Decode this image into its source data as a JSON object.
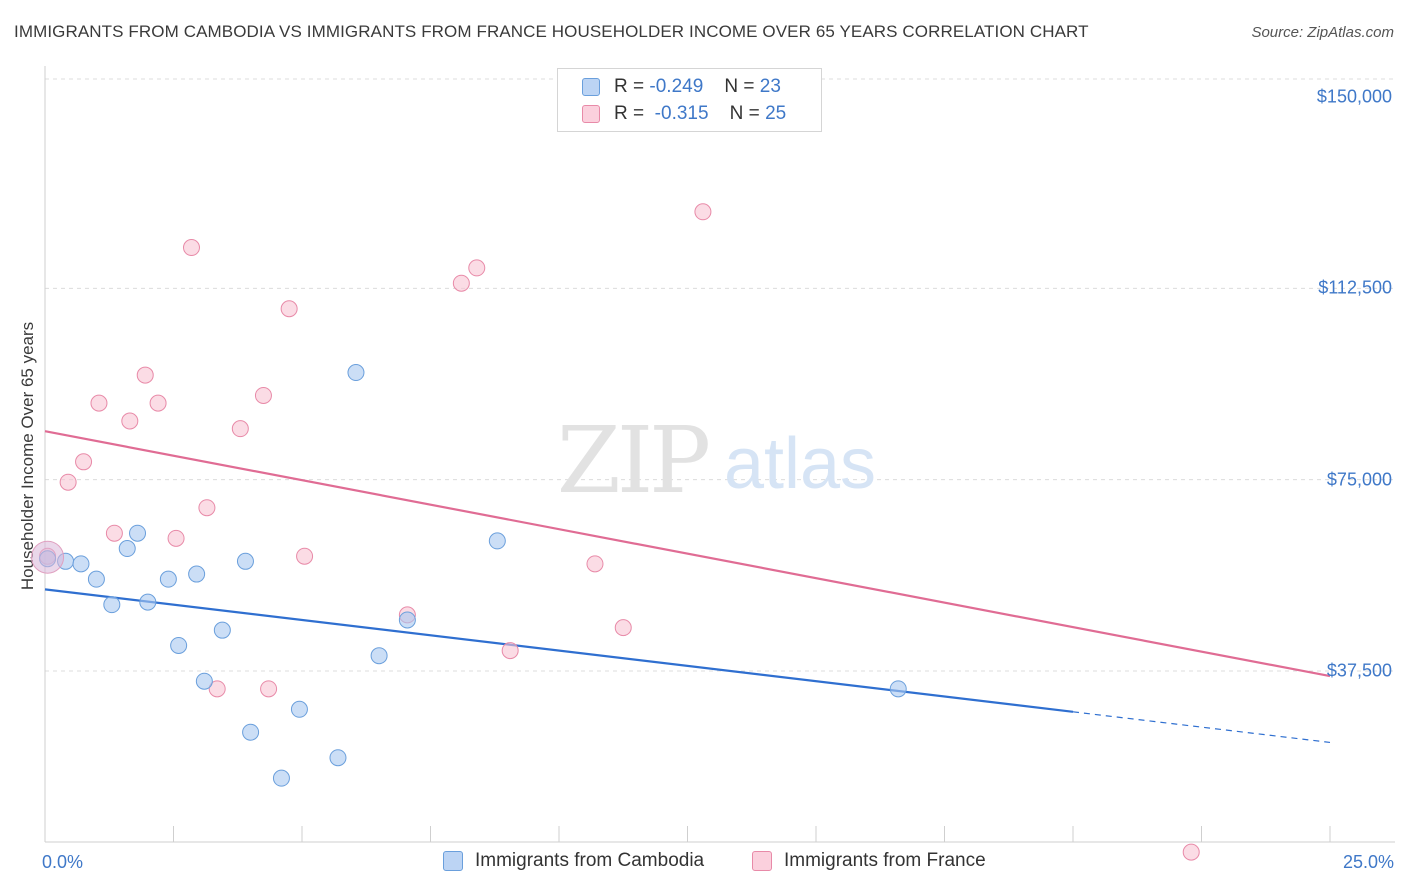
{
  "chart_data": {
    "type": "scatter",
    "title": "IMMIGRANTS FROM CAMBODIA VS IMMIGRANTS FROM FRANCE HOUSEHOLDER INCOME OVER 65 YEARS CORRELATION CHART",
    "source": "Source: ZipAtlas.com",
    "xlabel": "",
    "ylabel": "Householder Income Over 65 years",
    "xlim": [
      0,
      25
    ],
    "ylim": [
      0,
      155000
    ],
    "x_tick_labels": [
      "0.0%",
      "25.0%"
    ],
    "y_ticks": [
      {
        "value": 37500,
        "label": "$37,500"
      },
      {
        "value": 75000,
        "label": "$75,000"
      },
      {
        "value": 112500,
        "label": "$112,500"
      },
      {
        "value": 150000,
        "label": "$150,000"
      }
    ],
    "watermark": {
      "zip": "ZIP",
      "atlas": "atlas"
    },
    "legend_stats": [
      {
        "r_label": "R =",
        "r_value": "-0.249",
        "n_label": "N =",
        "n_value": "23"
      },
      {
        "r_label": "R =",
        "r_value": " -0.315",
        "n_label": "N =",
        "n_value": "25"
      }
    ],
    "series": [
      {
        "name": "Immigrants from Cambodia",
        "color": "#a9c8f0",
        "stroke": "#6a9fdc",
        "line_color": "#2f6fd0",
        "trend": {
          "x0": 0,
          "y0": 53500,
          "x1": 20,
          "y1": 29500,
          "dash_to_x": 25,
          "dash_to_y": 23500
        },
        "points": [
          [
            0.05,
            59500
          ],
          [
            0.4,
            59000
          ],
          [
            0.7,
            58500
          ],
          [
            1.0,
            55500
          ],
          [
            1.3,
            50500
          ],
          [
            1.6,
            61500
          ],
          [
            1.8,
            64500
          ],
          [
            2.0,
            51000
          ],
          [
            2.4,
            55500
          ],
          [
            2.6,
            42500
          ],
          [
            2.95,
            56500
          ],
          [
            3.1,
            35500
          ],
          [
            3.45,
            45500
          ],
          [
            3.9,
            59000
          ],
          [
            4.0,
            25500
          ],
          [
            4.6,
            16500
          ],
          [
            4.95,
            30000
          ],
          [
            5.7,
            20500
          ],
          [
            6.05,
            96000
          ],
          [
            6.5,
            40500
          ],
          [
            7.05,
            47500
          ],
          [
            8.8,
            63000
          ],
          [
            16.6,
            34000
          ]
        ]
      },
      {
        "name": "Immigrants from France",
        "color": "#f8c4d4",
        "stroke": "#e88aa8",
        "line_color": "#e06c94",
        "trend": {
          "x0": 0,
          "y0": 84500,
          "x1": 25,
          "y1": 36500
        },
        "points": [
          [
            0.05,
            60000
          ],
          [
            0.45,
            74500
          ],
          [
            0.75,
            78500
          ],
          [
            1.05,
            90000
          ],
          [
            1.35,
            64500
          ],
          [
            1.65,
            86500
          ],
          [
            1.95,
            95500
          ],
          [
            2.2,
            90000
          ],
          [
            2.55,
            63500
          ],
          [
            2.85,
            120500
          ],
          [
            3.15,
            69500
          ],
          [
            3.35,
            34000
          ],
          [
            3.8,
            85000
          ],
          [
            4.25,
            91500
          ],
          [
            4.35,
            34000
          ],
          [
            4.75,
            108500
          ],
          [
            5.05,
            60000
          ],
          [
            7.05,
            48500
          ],
          [
            8.1,
            113500
          ],
          [
            8.4,
            116500
          ],
          [
            9.05,
            41500
          ],
          [
            10.7,
            58500
          ],
          [
            11.25,
            46000
          ],
          [
            12.8,
            127500
          ],
          [
            22.3,
            2000
          ]
        ]
      }
    ]
  }
}
